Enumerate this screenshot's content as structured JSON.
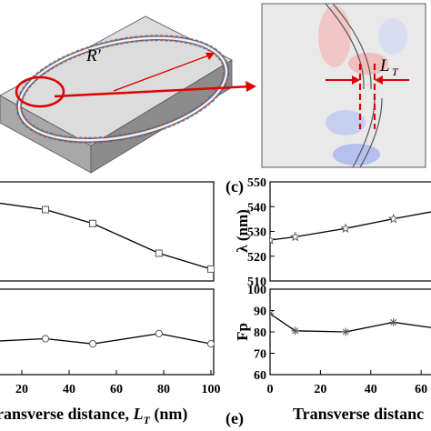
{
  "labels": {
    "r_prime": "R′",
    "l_t": "L",
    "l_t_sub": "T",
    "panel_c": "(c)",
    "panel_e": "(e)"
  },
  "chart_data": [
    {
      "type": "line",
      "panel": "b",
      "x_ticks": [
        "20",
        "40",
        "60",
        "80",
        "100"
      ],
      "x_label": "ransverse distance, ",
      "x_label_var": "L",
      "x_label_sub": "T",
      "x_label_unit": " (nm)",
      "xlim": [
        10,
        100
      ],
      "series": [
        {
          "marker": "square",
          "x": [
            0,
            30,
            50,
            78,
            100
          ],
          "y": [
            0.82,
            0.72,
            0.58,
            0.28,
            0.12
          ]
        }
      ]
    },
    {
      "type": "line",
      "panel": "b-lower",
      "xlim": [
        10,
        100
      ],
      "series": [
        {
          "marker": "circle",
          "x": [
            0,
            30,
            50,
            78,
            100
          ],
          "y": [
            0.38,
            0.42,
            0.36,
            0.48,
            0.36
          ]
        }
      ]
    },
    {
      "type": "line",
      "panel": "c",
      "y_label": "λ (nm)",
      "y_ticks": [
        "510",
        "520",
        "530",
        "540",
        "550"
      ],
      "ylim": [
        510,
        550
      ],
      "xlim": [
        0,
        65
      ],
      "series": [
        {
          "marker": "star",
          "x": [
            0,
            10,
            30,
            49,
            70
          ],
          "y": [
            526.5,
            527.8,
            531.2,
            535.1,
            539
          ]
        }
      ]
    },
    {
      "type": "line",
      "panel": "e",
      "y_label": "Fp",
      "y_ticks": [
        "60",
        "70",
        "80",
        "90",
        "100"
      ],
      "x_ticks": [
        "0",
        "20",
        "40",
        "60"
      ],
      "x_label": "Transverse distanc",
      "ylim": [
        60,
        100
      ],
      "xlim": [
        0,
        65
      ],
      "series": [
        {
          "marker": "asterisk",
          "x": [
            0,
            10,
            30,
            49,
            70
          ],
          "y": [
            88.5,
            80.5,
            80,
            84.5,
            81
          ]
        }
      ]
    }
  ]
}
